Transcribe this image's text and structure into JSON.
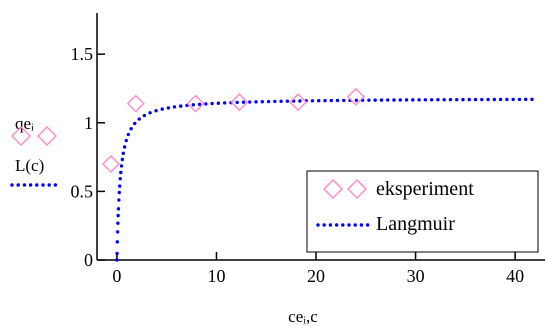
{
  "chart_data": {
    "type": "scatter",
    "xlim": [
      -2,
      43
    ],
    "ylim": [
      0,
      1.8
    ],
    "x_ticks": [
      0,
      10,
      20,
      30,
      40
    ],
    "y_ticks": [
      0,
      0.5,
      1,
      1.5
    ],
    "x_tick_labels": [
      "0",
      "10",
      "20",
      "30",
      "40"
    ],
    "y_tick_labels": [
      "0",
      "0.5",
      "1",
      "1.5"
    ],
    "xlabel": "ceᵢ,c",
    "ylabel_top": "qeᵢ",
    "ylabel_bottom": "L(c)",
    "grid": false,
    "legend_position": "lower-right",
    "series": [
      {
        "name": "eksperiment",
        "style": "diamond-markers",
        "color": "#ff88cc",
        "points": [
          {
            "x": -0.6,
            "y": 0.7
          },
          {
            "x": 1.9,
            "y": 1.14
          },
          {
            "x": 7.9,
            "y": 1.14
          },
          {
            "x": 12.3,
            "y": 1.15
          },
          {
            "x": 18.2,
            "y": 1.15
          },
          {
            "x": 24.0,
            "y": 1.19
          }
        ]
      },
      {
        "name": "Langmuir",
        "style": "dotted-line",
        "color": "#0000ff",
        "qmax": 1.18,
        "K": 3.0,
        "x_start": 0,
        "x_end": 42
      }
    ]
  }
}
